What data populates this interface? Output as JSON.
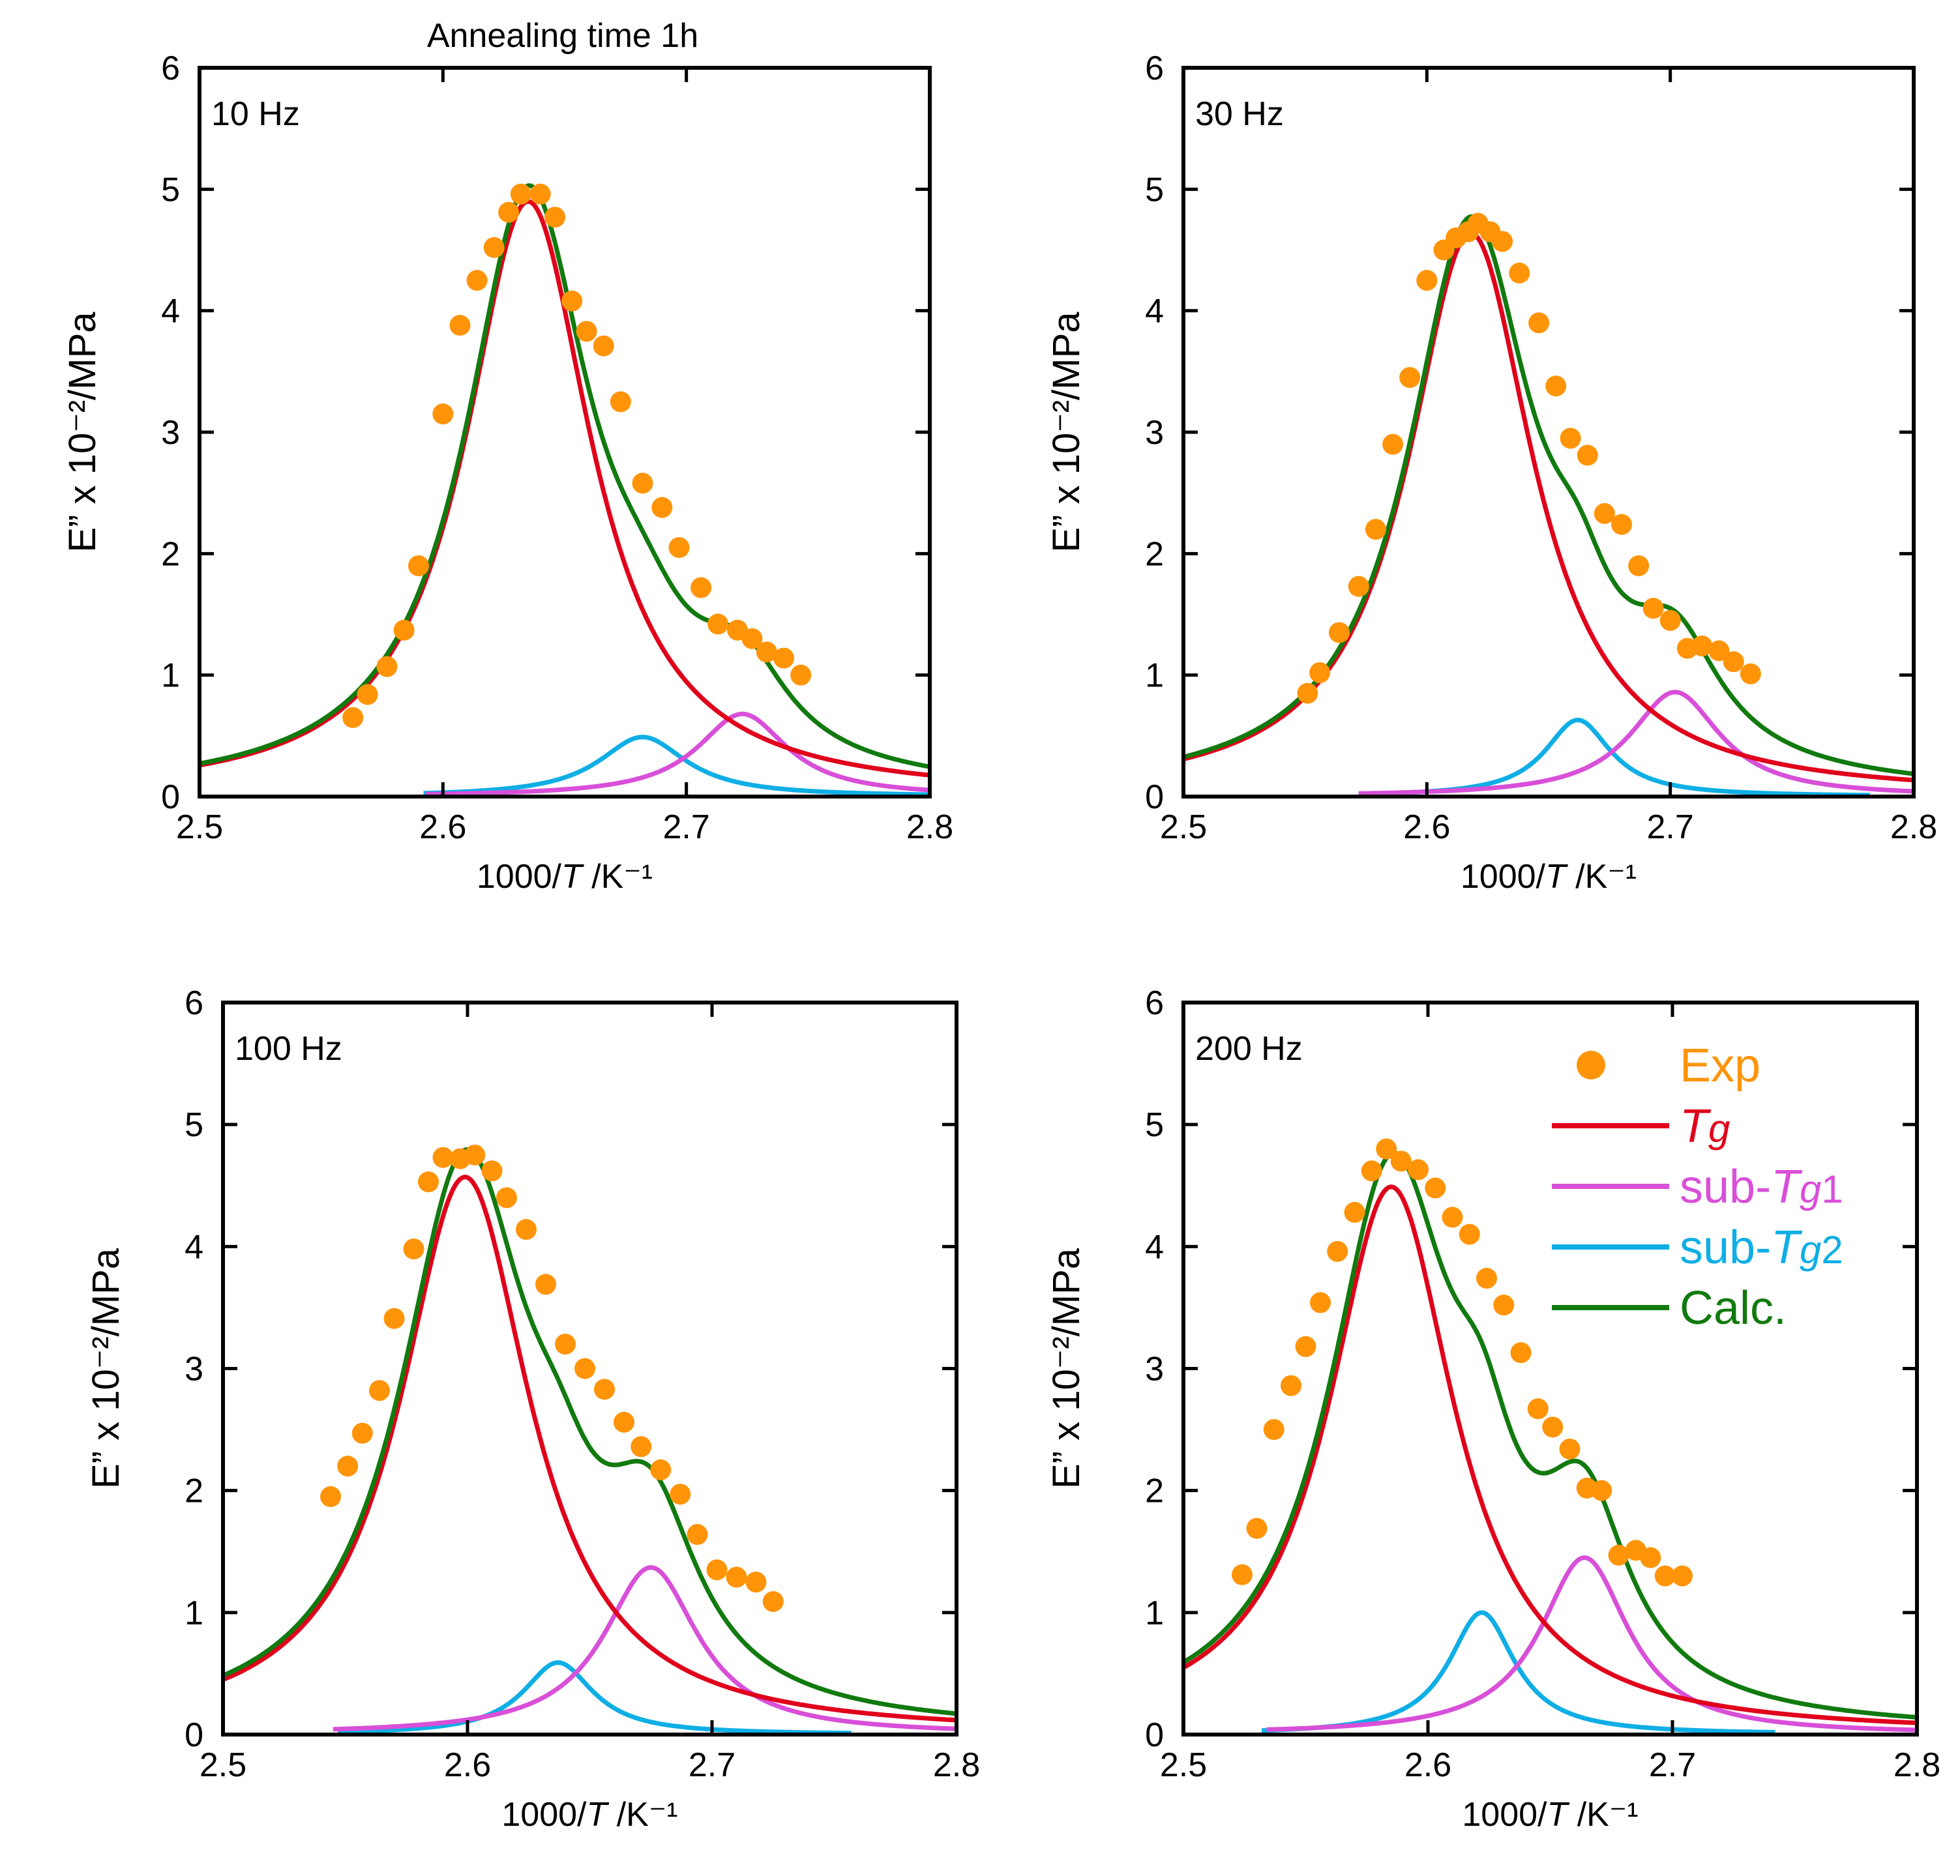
{
  "figure": {
    "title": "Annealing time 1h"
  },
  "legend": {
    "entries": [
      {
        "label": "Exp",
        "color": "#FF9408",
        "kind": "marker"
      },
      {
        "label": "Tg",
        "color": "#E0001B",
        "kind": "line",
        "italic": true
      },
      {
        "label": "sub-Tg1",
        "color": "#D84FD8",
        "kind": "line"
      },
      {
        "label": "sub-Tg2",
        "color": "#0FAEE5",
        "kind": "line"
      },
      {
        "label": "Calc.",
        "color": "#117A0F",
        "kind": "line"
      }
    ]
  },
  "chart_data": [
    {
      "type": "line",
      "panel": "top-left",
      "label": "10 Hz",
      "xlabel": "1000/T /K⁻¹",
      "ylabel": "E” x 10⁻²/MPa",
      "xlim": [
        2.5,
        2.8
      ],
      "ylim": [
        0,
        6
      ],
      "xticks": [
        "2.5",
        "2.6",
        "2.7",
        "2.8"
      ],
      "yticks": [
        "0",
        "1",
        "2",
        "3",
        "4",
        "5",
        "6"
      ],
      "peaks": {
        "Tg": {
          "x0": 2.635,
          "amp": 4.9,
          "w": 0.0318
        },
        "sub-Tg1": {
          "x0": 2.723,
          "amp": 0.68,
          "w": 0.0225
        },
        "sub-Tg2": {
          "x0": 2.682,
          "amp": 0.49,
          "w": 0.022
        }
      },
      "exp": {
        "x": [
          2.563,
          2.569,
          2.577,
          2.584,
          2.59,
          2.6,
          2.607,
          2.614,
          2.621,
          2.627,
          2.632,
          2.64,
          2.646,
          2.653,
          2.659,
          2.666,
          2.673,
          2.682,
          2.69,
          2.697,
          2.706,
          2.713,
          2.721,
          2.727,
          2.733,
          2.74,
          2.747
        ],
        "y": [
          0.65,
          0.84,
          1.07,
          1.37,
          1.9,
          3.15,
          3.88,
          4.25,
          4.52,
          4.81,
          4.96,
          4.96,
          4.77,
          4.08,
          3.83,
          3.71,
          3.25,
          2.58,
          2.38,
          2.05,
          1.72,
          1.42,
          1.37,
          1.3,
          1.19,
          1.14,
          1.0
        ]
      }
    },
    {
      "type": "line",
      "panel": "top-right",
      "label": "30 Hz",
      "xlabel": "1000/T /K⁻¹",
      "ylabel": "E” x 10⁻²/MPa",
      "xlim": [
        2.5,
        2.8
      ],
      "ylim": [
        0,
        6
      ],
      "xticks": [
        "2.5",
        "2.6",
        "2.7",
        "2.8"
      ],
      "yticks": [
        "0",
        "1",
        "2",
        "3",
        "4",
        "5",
        "6"
      ],
      "peaks": {
        "Tg": {
          "x0": 2.618,
          "amp": 4.64,
          "w": 0.0315
        },
        "sub-Tg1": {
          "x0": 2.702,
          "amp": 0.86,
          "w": 0.0225
        },
        "sub-Tg2": {
          "x0": 2.662,
          "amp": 0.63,
          "w": 0.0165
        }
      },
      "exp": {
        "x": [
          2.551,
          2.556,
          2.564,
          2.572,
          2.579,
          2.586,
          2.593,
          2.6,
          2.607,
          2.612,
          2.617,
          2.621,
          2.626,
          2.631,
          2.638,
          2.646,
          2.653,
          2.659,
          2.666,
          2.673,
          2.68,
          2.687,
          2.693,
          2.7,
          2.707,
          2.713,
          2.72,
          2.726,
          2.733
        ],
        "y": [
          0.85,
          1.02,
          1.35,
          1.73,
          2.2,
          2.9,
          3.45,
          4.25,
          4.5,
          4.6,
          4.65,
          4.72,
          4.65,
          4.57,
          4.31,
          3.9,
          3.38,
          2.95,
          2.81,
          2.33,
          2.24,
          1.9,
          1.55,
          1.45,
          1.22,
          1.24,
          1.2,
          1.11,
          1.01
        ]
      }
    },
    {
      "type": "line",
      "panel": "bottom-left",
      "label": "100 Hz",
      "xlabel": "1000/T /K⁻¹",
      "ylabel": "E” x 10⁻²/MPa",
      "xlim": [
        2.5,
        2.8
      ],
      "ylim": [
        0,
        6
      ],
      "xticks": [
        "2.5",
        "2.6",
        "2.7",
        "2.8"
      ],
      "yticks": [
        "0",
        "1",
        "2",
        "3",
        "4",
        "5",
        "6"
      ],
      "peaks": {
        "Tg": {
          "x0": 2.599,
          "amp": 4.57,
          "w": 0.0327
        },
        "sub-Tg1": {
          "x0": 2.675,
          "amp": 1.37,
          "w": 0.0235
        },
        "sub-Tg2": {
          "x0": 2.637,
          "amp": 0.59,
          "w": 0.0175
        }
      },
      "exp": {
        "x": [
          2.544,
          2.551,
          2.557,
          2.564,
          2.57,
          2.578,
          2.584,
          2.59,
          2.597,
          2.603,
          2.61,
          2.616,
          2.624,
          2.632,
          2.64,
          2.648,
          2.656,
          2.664,
          2.671,
          2.679,
          2.687,
          2.694,
          2.702,
          2.71,
          2.718,
          2.725
        ],
        "y": [
          1.95,
          2.2,
          2.47,
          2.82,
          3.41,
          3.98,
          4.53,
          4.73,
          4.72,
          4.75,
          4.62,
          4.4,
          4.14,
          3.69,
          3.2,
          3.0,
          2.83,
          2.56,
          2.36,
          2.17,
          1.97,
          1.64,
          1.35,
          1.29,
          1.25,
          1.09
        ]
      }
    },
    {
      "type": "line",
      "panel": "bottom-right",
      "label": "200 Hz",
      "xlabel": "1000/T /K⁻¹",
      "ylabel": "E” x 10⁻²/MPa",
      "xlim": [
        2.5,
        2.8
      ],
      "ylim": [
        0,
        6
      ],
      "xticks": [
        "2.5",
        "2.6",
        "2.7",
        "2.8"
      ],
      "yticks": [
        "0",
        "1",
        "2",
        "3",
        "4",
        "5",
        "6"
      ],
      "peaks": {
        "Tg": {
          "x0": 2.585,
          "amp": 4.49,
          "w": 0.0317
        },
        "sub-Tg1": {
          "x0": 2.664,
          "amp": 1.45,
          "w": 0.022
        },
        "sub-Tg2": {
          "x0": 2.622,
          "amp": 1.0,
          "w": 0.0165
        }
      },
      "exp": {
        "x": [
          2.524,
          2.53,
          2.537,
          2.544,
          2.55,
          2.556,
          2.563,
          2.57,
          2.577,
          2.583,
          2.589,
          2.596,
          2.603,
          2.61,
          2.617,
          2.624,
          2.631,
          2.638,
          2.645,
          2.651,
          2.658,
          2.665,
          2.671,
          2.678,
          2.685,
          2.691,
          2.697,
          2.704
        ],
        "y": [
          1.31,
          1.69,
          2.5,
          2.86,
          3.18,
          3.54,
          3.96,
          4.28,
          4.62,
          4.8,
          4.7,
          4.63,
          4.48,
          4.24,
          4.1,
          3.74,
          3.52,
          3.13,
          2.67,
          2.52,
          2.34,
          2.02,
          2.0,
          1.47,
          1.51,
          1.45,
          1.3,
          1.3
        ]
      }
    }
  ]
}
